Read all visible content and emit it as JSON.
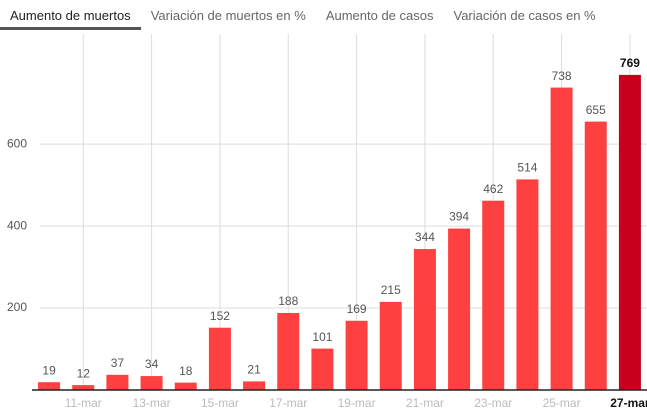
{
  "tabs": [
    "Aumento de muertos",
    "Variación de muertos en %",
    "Aumento de casos",
    "Variación de casos en %"
  ],
  "active_tab": 0,
  "chart_data": {
    "type": "bar",
    "categories": [
      null,
      "11-mar",
      null,
      "13-mar",
      null,
      "15-mar",
      null,
      "17-mar",
      null,
      "19-mar",
      null,
      "21-mar",
      null,
      "23-mar",
      null,
      "25-mar",
      null,
      "27-mar"
    ],
    "values": [
      19,
      12,
      37,
      34,
      18,
      152,
      21,
      188,
      101,
      169,
      215,
      344,
      394,
      462,
      514,
      738,
      655,
      769
    ],
    "color": "#ff4040",
    "highlight_color": "#c8001e",
    "colors": [
      "#ff4040",
      "#ff4040",
      "#ff4040",
      "#ff4040",
      "#ff4040",
      "#ff4040",
      "#ff4040",
      "#ff4040",
      "#ff4040",
      "#ff4040",
      "#ff4040",
      "#ff4040",
      "#ff4040",
      "#ff4040",
      "#ff4040",
      "#ff4040",
      "#ff4040",
      "#c8001e"
    ],
    "ylim": [
      0,
      820
    ],
    "yticks": [
      200,
      400,
      600
    ],
    "grid": true
  }
}
